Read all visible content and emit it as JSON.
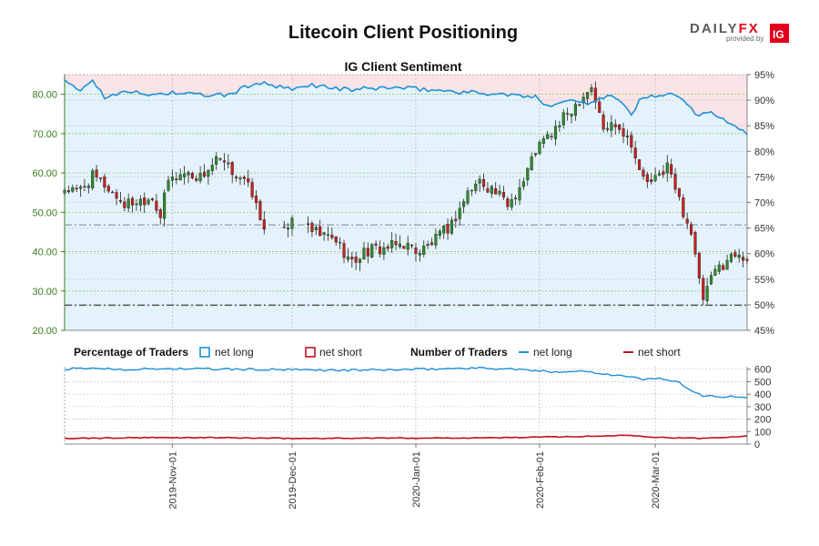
{
  "logo": {
    "brand": "DAILYFX",
    "brand_main": "DAILY",
    "brand_accent": "FX",
    "provided": "provided by",
    "ig": "IG",
    "accent_color": "#e2001a"
  },
  "title": "Litecoin Client Positioning",
  "subtitle": "IG Client Sentiment",
  "legend": {
    "pct_heading": "Percentage of Traders",
    "num_heading": "Number of Traders",
    "net_long": "net long",
    "net_short": "net short"
  },
  "colors": {
    "long": "#1e90d8",
    "short": "#c0101c",
    "price_axis": "#3a7d1e",
    "up": "#2e8b2e",
    "down": "#c82020",
    "long_zone": "#e4f3fb",
    "short_zone": "#fbe4e6"
  },
  "chart_data": [
    {
      "type": "candlestick",
      "name": "price",
      "yaxis_left": {
        "ticks": [
          "20.00",
          "30.00",
          "40.00",
          "50.00",
          "60.00",
          "70.00",
          "80.00"
        ],
        "range": [
          20,
          85
        ]
      },
      "yaxis_right": {
        "ticks": [
          "45%",
          "50%",
          "55%",
          "60%",
          "65%",
          "70%",
          "75%",
          "80%",
          "85%",
          "90%",
          "95%"
        ],
        "range": [
          45,
          95
        ]
      },
      "x": {
        "start": "2019-10-05",
        "end": "2020-03-24",
        "ticks": [
          "2019-Nov-01",
          "2019-Dec-01",
          "2020-Jan-01",
          "2020-Feb-01",
          "2020-Mar-01"
        ]
      },
      "gaps": [
        [
          "2019-11-24",
          "2019-11-29"
        ],
        [
          "2019-12-01",
          "2019-12-05"
        ]
      ],
      "reference_lines": [
        46.8,
        26.4
      ],
      "price_knots": [
        [
          "2019-10-05",
          56
        ],
        [
          "2019-10-08",
          55
        ],
        [
          "2019-10-12",
          59
        ],
        [
          "2019-10-15",
          57
        ],
        [
          "2019-10-20",
          52
        ],
        [
          "2019-10-27",
          54
        ],
        [
          "2019-10-29",
          49
        ],
        [
          "2019-10-31",
          58
        ],
        [
          "2019-11-04",
          60
        ],
        [
          "2019-11-08",
          59
        ],
        [
          "2019-11-12",
          63
        ],
        [
          "2019-11-14",
          62
        ],
        [
          "2019-11-18",
          59
        ],
        [
          "2019-11-21",
          55
        ],
        [
          "2019-11-23",
          48
        ],
        [
          "2019-11-24",
          47
        ],
        [
          "2019-12-01",
          47
        ],
        [
          "2019-12-06",
          45
        ],
        [
          "2019-12-12",
          43
        ],
        [
          "2019-12-16",
          37
        ],
        [
          "2019-12-19",
          40
        ],
        [
          "2019-12-25",
          41
        ],
        [
          "2019-12-29",
          42
        ],
        [
          "2020-01-02",
          40
        ],
        [
          "2020-01-06",
          43
        ],
        [
          "2020-01-10",
          47
        ],
        [
          "2020-01-14",
          55
        ],
        [
          "2020-01-17",
          58
        ],
        [
          "2020-01-20",
          56
        ],
        [
          "2020-01-24",
          52
        ],
        [
          "2020-01-28",
          58
        ],
        [
          "2020-01-31",
          66
        ],
        [
          "2020-02-04",
          70
        ],
        [
          "2020-02-08",
          75
        ],
        [
          "2020-02-12",
          80
        ],
        [
          "2020-02-14",
          82
        ],
        [
          "2020-02-17",
          71
        ],
        [
          "2020-02-20",
          73
        ],
        [
          "2020-02-24",
          68
        ],
        [
          "2020-02-26",
          60
        ],
        [
          "2020-02-29",
          57
        ],
        [
          "2020-03-04",
          62
        ],
        [
          "2020-03-07",
          53
        ],
        [
          "2020-03-10",
          45
        ],
        [
          "2020-03-12",
          32
        ],
        [
          "2020-03-13",
          28
        ],
        [
          "2020-03-16",
          35
        ],
        [
          "2020-03-19",
          38
        ],
        [
          "2020-03-22",
          40
        ],
        [
          "2020-03-24",
          38
        ]
      ],
      "net_long_pct_knots": [
        [
          "2019-10-05",
          93.5
        ],
        [
          "2019-10-09",
          92
        ],
        [
          "2019-10-12",
          94
        ],
        [
          "2019-10-15",
          90.5
        ],
        [
          "2019-10-20",
          92
        ],
        [
          "2019-10-25",
          91
        ],
        [
          "2019-11-01",
          91.5
        ],
        [
          "2019-11-08",
          91
        ],
        [
          "2019-11-15",
          91
        ],
        [
          "2019-11-22",
          93.5
        ],
        [
          "2019-12-01",
          92
        ],
        [
          "2019-12-06",
          93
        ],
        [
          "2019-12-15",
          92
        ],
        [
          "2019-12-25",
          92.5
        ],
        [
          "2020-01-05",
          92
        ],
        [
          "2020-01-15",
          91.5
        ],
        [
          "2020-01-25",
          91
        ],
        [
          "2020-01-31",
          90.5
        ],
        [
          "2020-02-03",
          89
        ],
        [
          "2020-02-08",
          90
        ],
        [
          "2020-02-13",
          89.5
        ],
        [
          "2020-02-18",
          91
        ],
        [
          "2020-02-21",
          90
        ],
        [
          "2020-02-24",
          87
        ],
        [
          "2020-02-26",
          90
        ],
        [
          "2020-03-01",
          91
        ],
        [
          "2020-03-06",
          91
        ],
        [
          "2020-03-09",
          89
        ],
        [
          "2020-03-12",
          87
        ],
        [
          "2020-03-15",
          88
        ],
        [
          "2020-03-18",
          86
        ],
        [
          "2020-03-21",
          85
        ],
        [
          "2020-03-24",
          83.5
        ]
      ],
      "net_long_pct_unit": "%"
    },
    {
      "type": "line",
      "name": "Number of Traders",
      "yaxis_right": {
        "ticks": [
          "0",
          "100",
          "200",
          "300",
          "400",
          "500",
          "600"
        ],
        "range": [
          0,
          620
        ]
      },
      "series": [
        {
          "name": "net long",
          "knots": [
            [
              "2019-10-05",
              600
            ],
            [
              "2019-10-12",
              610
            ],
            [
              "2019-10-20",
              598
            ],
            [
              "2019-11-01",
              605
            ],
            [
              "2019-11-15",
              600
            ],
            [
              "2019-12-01",
              595
            ],
            [
              "2019-12-15",
              592
            ],
            [
              "2020-01-01",
              598
            ],
            [
              "2020-01-15",
              610
            ],
            [
              "2020-01-25",
              602
            ],
            [
              "2020-02-03",
              580
            ],
            [
              "2020-02-12",
              585
            ],
            [
              "2020-02-22",
              545
            ],
            [
              "2020-02-27",
              520
            ],
            [
              "2020-03-03",
              525
            ],
            [
              "2020-03-07",
              490
            ],
            [
              "2020-03-10",
              420
            ],
            [
              "2020-03-13",
              390
            ],
            [
              "2020-03-18",
              380
            ],
            [
              "2020-03-24",
              375
            ]
          ]
        },
        {
          "name": "net short",
          "knots": [
            [
              "2019-10-05",
              45
            ],
            [
              "2019-10-20",
              50
            ],
            [
              "2019-11-10",
              52
            ],
            [
              "2019-12-01",
              45
            ],
            [
              "2019-12-25",
              48
            ],
            [
              "2020-01-20",
              50
            ],
            [
              "2020-02-05",
              58
            ],
            [
              "2020-02-14",
              62
            ],
            [
              "2020-02-24",
              72
            ],
            [
              "2020-03-01",
              55
            ],
            [
              "2020-03-12",
              45
            ],
            [
              "2020-03-24",
              65
            ]
          ]
        }
      ]
    }
  ]
}
